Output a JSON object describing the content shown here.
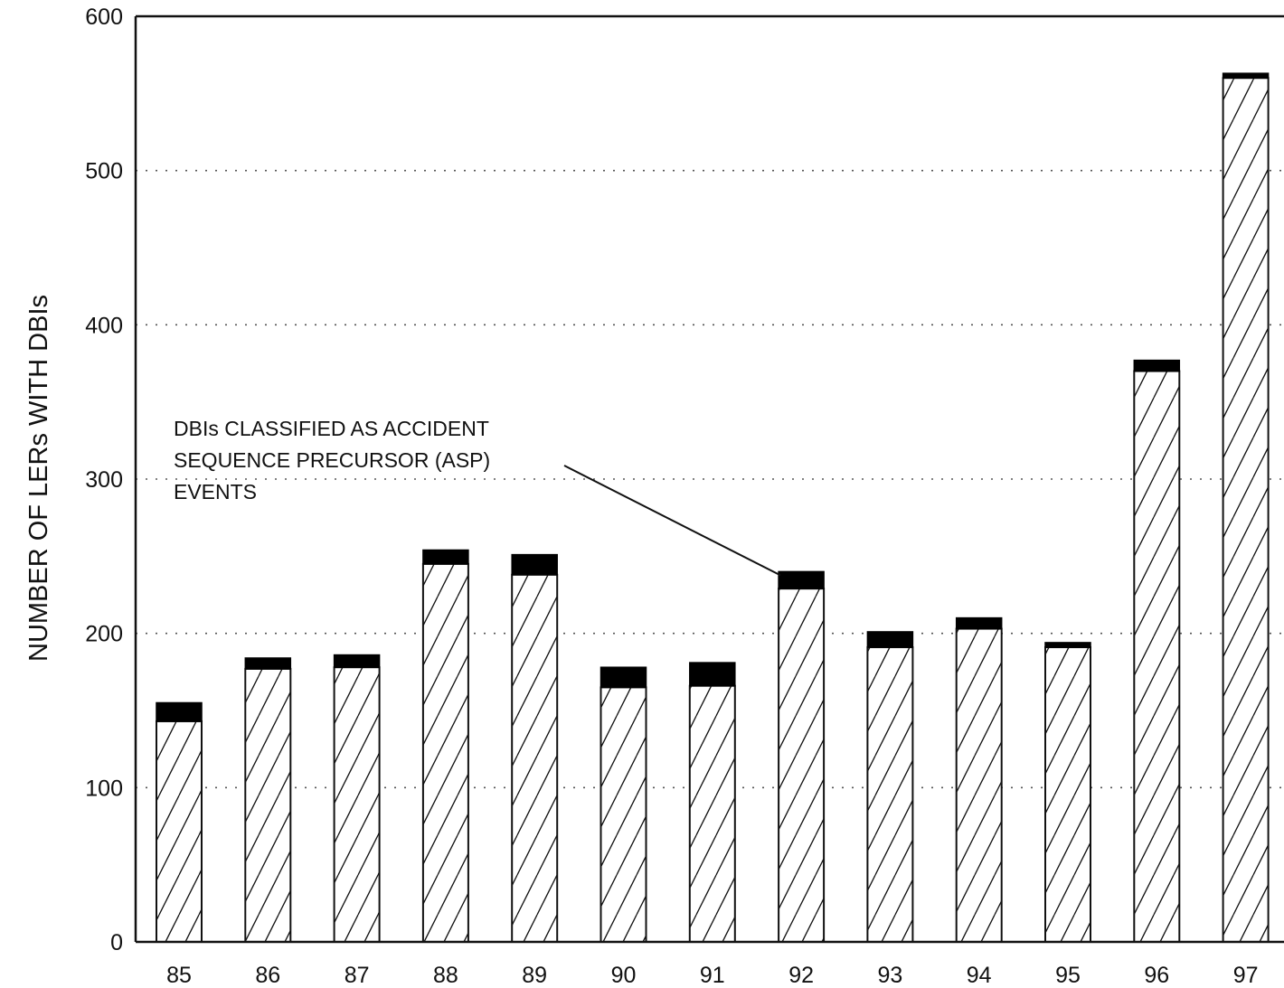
{
  "chart_data": {
    "type": "bar",
    "stacked": true,
    "title": "",
    "xlabel": "",
    "ylabel": "NUMBER OF LERs WITH DBIs",
    "categories": [
      "85",
      "86",
      "87",
      "88",
      "89",
      "90",
      "91",
      "92",
      "93",
      "94",
      "95",
      "96",
      "97"
    ],
    "series": [
      {
        "pattern": "diagonal-hatch",
        "values": [
          143,
          177,
          178,
          245,
          238,
          165,
          166,
          229,
          191,
          203,
          191,
          370,
          560
        ]
      },
      {
        "pattern": "solid-black",
        "values": [
          12,
          7,
          8,
          9,
          13,
          13,
          15,
          11,
          10,
          7,
          3,
          7,
          3
        ]
      }
    ],
    "ylim": [
      0,
      600
    ],
    "yticks": [
      0,
      100,
      200,
      300,
      400,
      500,
      600
    ],
    "grid": "dotted-horizontal",
    "annotation": {
      "lines": [
        "DBIs CLASSIFIED AS ACCIDENT",
        "SEQUENCE PRECURSOR (ASP)",
        "EVENTS"
      ],
      "points_to_category": "92"
    },
    "colors": {
      "hatch": "#111111",
      "solid": "#000000",
      "grid": "#555555"
    }
  }
}
